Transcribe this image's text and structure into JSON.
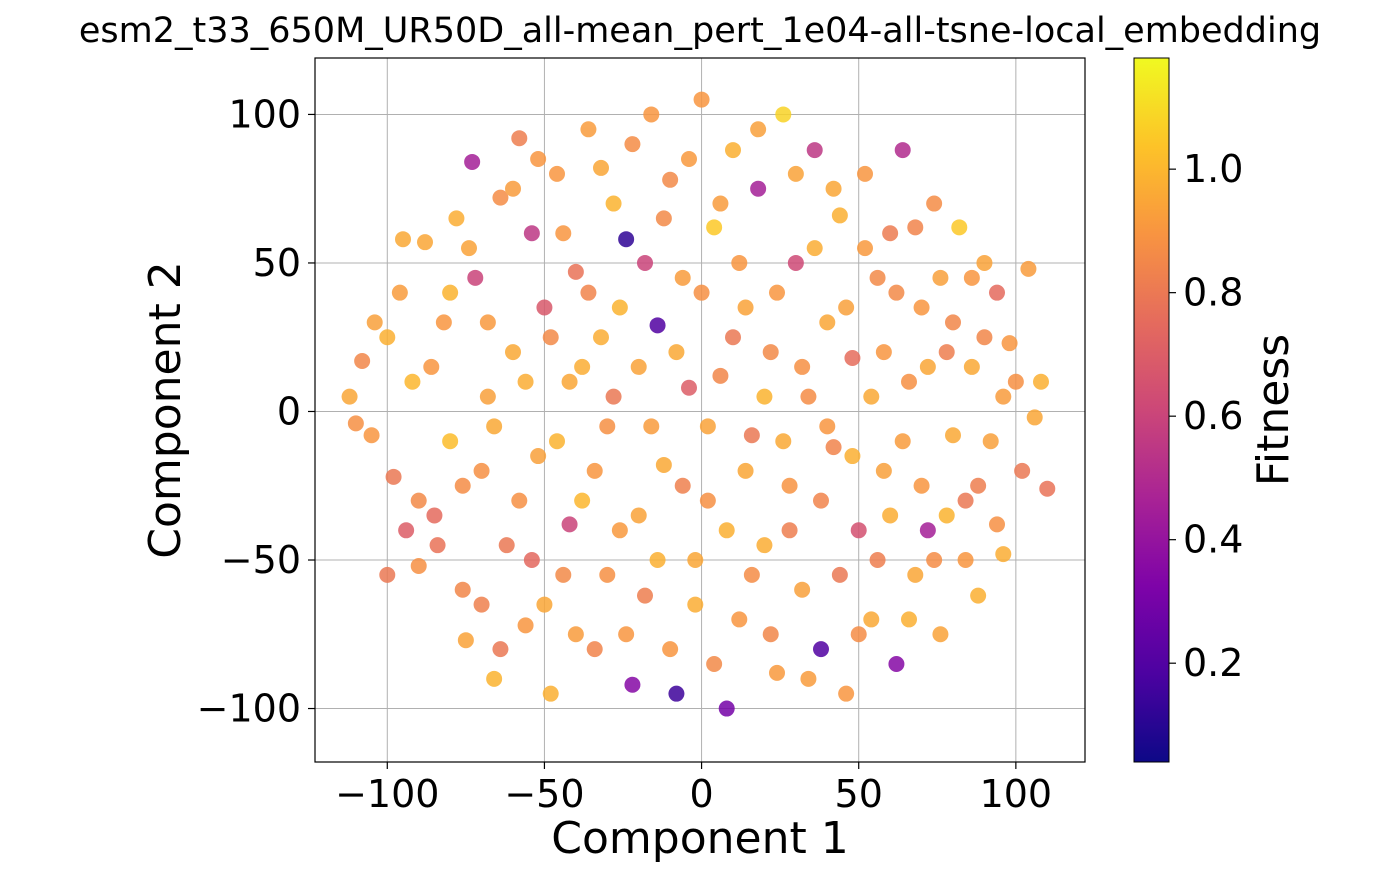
{
  "chart_data": {
    "type": "scatter",
    "title": "esm2_t33_650M_UR50D_all-mean_pert_1e04-all-tsne-local_embedding",
    "xlabel": "Component 1",
    "ylabel": "Component 2",
    "xlim": [
      -123,
      122
    ],
    "ylim": [
      -118,
      119
    ],
    "xticks": [
      -100,
      -50,
      0,
      50,
      100
    ],
    "yticks": [
      -100,
      -50,
      0,
      50,
      100
    ],
    "xtick_labels": [
      "−100",
      "−50",
      "0",
      "50",
      "100"
    ],
    "ytick_labels": [
      "−100",
      "−50",
      "0",
      "50",
      "100"
    ],
    "grid": true,
    "colormap": "plasma",
    "colorbar": {
      "label": "Fitness",
      "range": [
        0.04,
        1.18
      ],
      "ticks": [
        0.2,
        0.4,
        0.6,
        0.8,
        1.0
      ],
      "tick_labels": [
        "0.2",
        "0.4",
        "0.6",
        "0.8",
        "1.0"
      ],
      "placement": "right"
    },
    "points": [
      [
        -112,
        5,
        0.95
      ],
      [
        -108,
        17,
        0.85
      ],
      [
        -105,
        -8,
        0.9
      ],
      [
        -100,
        25,
        0.98
      ],
      [
        -98,
        -22,
        0.8
      ],
      [
        -96,
        40,
        0.92
      ],
      [
        -94,
        -40,
        0.7
      ],
      [
        -92,
        10,
        1.0
      ],
      [
        -90,
        -52,
        0.88
      ],
      [
        -88,
        57,
        0.95
      ],
      [
        -85,
        -35,
        0.75
      ],
      [
        -82,
        30,
        0.9
      ],
      [
        -80,
        -10,
        1.02
      ],
      [
        -78,
        65,
        0.97
      ],
      [
        -76,
        -60,
        0.85
      ],
      [
        -75,
        -77,
        0.94
      ],
      [
        -73,
        84,
        0.45
      ],
      [
        -72,
        45,
        0.6
      ],
      [
        -70,
        -20,
        0.88
      ],
      [
        -68,
        5,
        0.93
      ],
      [
        -66,
        -90,
        0.99
      ],
      [
        -64,
        72,
        0.87
      ],
      [
        -62,
        -45,
        0.8
      ],
      [
        -60,
        20,
        0.96
      ],
      [
        -58,
        92,
        0.82
      ],
      [
        -56,
        -72,
        0.9
      ],
      [
        -54,
        60,
        0.55
      ],
      [
        -52,
        -15,
        0.93
      ],
      [
        -50,
        35,
        0.68
      ],
      [
        -48,
        -95,
        0.98
      ],
      [
        -46,
        80,
        0.9
      ],
      [
        -44,
        -55,
        0.86
      ],
      [
        -42,
        10,
        0.95
      ],
      [
        -40,
        47,
        0.78
      ],
      [
        -38,
        -30,
        1.0
      ],
      [
        -36,
        95,
        0.92
      ],
      [
        -34,
        -80,
        0.84
      ],
      [
        -32,
        25,
        0.97
      ],
      [
        -30,
        -5,
        0.88
      ],
      [
        -28,
        70,
        0.99
      ],
      [
        -26,
        -40,
        0.91
      ],
      [
        -24,
        58,
        0.12
      ],
      [
        -22,
        -92,
        0.35
      ],
      [
        -20,
        15,
        0.94
      ],
      [
        -18,
        -62,
        0.82
      ],
      [
        -16,
        100,
        0.9
      ],
      [
        -14,
        29,
        0.2
      ],
      [
        -12,
        -18,
        0.96
      ],
      [
        -10,
        78,
        0.86
      ],
      [
        -8,
        -95,
        0.15
      ],
      [
        -6,
        45,
        0.92
      ],
      [
        -4,
        8,
        0.7
      ],
      [
        -2,
        -50,
        0.95
      ],
      [
        0,
        105,
        0.9
      ],
      [
        2,
        -30,
        0.88
      ],
      [
        4,
        62,
        1.05
      ],
      [
        6,
        12,
        0.85
      ],
      [
        8,
        -100,
        0.3
      ],
      [
        10,
        88,
        0.98
      ],
      [
        12,
        -70,
        0.9
      ],
      [
        14,
        35,
        0.94
      ],
      [
        16,
        -8,
        0.8
      ],
      [
        18,
        75,
        0.45
      ],
      [
        20,
        -45,
        0.97
      ],
      [
        22,
        20,
        0.86
      ],
      [
        24,
        -88,
        0.91
      ],
      [
        26,
        100,
        1.08
      ],
      [
        28,
        -25,
        0.89
      ],
      [
        30,
        50,
        0.62
      ],
      [
        32,
        -60,
        0.93
      ],
      [
        34,
        5,
        0.87
      ],
      [
        36,
        88,
        0.55
      ],
      [
        38,
        -80,
        0.2
      ],
      [
        40,
        30,
        0.95
      ],
      [
        42,
        -12,
        0.84
      ],
      [
        44,
        66,
        0.98
      ],
      [
        46,
        -95,
        0.9
      ],
      [
        48,
        18,
        0.76
      ],
      [
        50,
        -40,
        0.65
      ],
      [
        52,
        80,
        0.9
      ],
      [
        54,
        -70,
        0.96
      ],
      [
        56,
        45,
        0.86
      ],
      [
        58,
        -20,
        0.93
      ],
      [
        60,
        60,
        0.81
      ],
      [
        62,
        -85,
        0.35
      ],
      [
        64,
        88,
        0.5
      ],
      [
        66,
        10,
        0.88
      ],
      [
        68,
        -55,
        0.95
      ],
      [
        70,
        35,
        0.9
      ],
      [
        72,
        -40,
        0.45
      ],
      [
        74,
        70,
        0.87
      ],
      [
        76,
        -75,
        0.94
      ],
      [
        78,
        20,
        0.82
      ],
      [
        80,
        -8,
        0.96
      ],
      [
        82,
        62,
        1.05
      ],
      [
        84,
        -30,
        0.8
      ],
      [
        86,
        45,
        0.9
      ],
      [
        88,
        -62,
        0.98
      ],
      [
        90,
        25,
        0.85
      ],
      [
        92,
        -10,
        0.93
      ],
      [
        94,
        40,
        0.75
      ],
      [
        96,
        -48,
        0.97
      ],
      [
        98,
        23,
        0.9
      ],
      [
        100,
        10,
        0.88
      ],
      [
        102,
        -20,
        0.8
      ],
      [
        104,
        48,
        0.92
      ],
      [
        106,
        -2,
        0.95
      ],
      [
        108,
        10,
        0.98
      ],
      [
        110,
        -26,
        0.78
      ],
      [
        -110,
        -4,
        0.88
      ],
      [
        -104,
        30,
        0.93
      ],
      [
        -100,
        -55,
        0.8
      ],
      [
        -95,
        58,
        0.96
      ],
      [
        -90,
        -30,
        0.86
      ],
      [
        -86,
        15,
        0.9
      ],
      [
        -84,
        -45,
        0.78
      ],
      [
        -80,
        40,
        0.99
      ],
      [
        -76,
        -25,
        0.87
      ],
      [
        -74,
        55,
        0.94
      ],
      [
        -70,
        -65,
        0.83
      ],
      [
        -68,
        30,
        0.91
      ],
      [
        -66,
        -5,
        0.96
      ],
      [
        -64,
        -80,
        0.8
      ],
      [
        -60,
        75,
        0.92
      ],
      [
        -58,
        -30,
        0.88
      ],
      [
        -56,
        10,
        0.97
      ],
      [
        -54,
        -50,
        0.74
      ],
      [
        -52,
        85,
        0.9
      ],
      [
        -50,
        -65,
        0.95
      ],
      [
        -48,
        25,
        0.86
      ],
      [
        -46,
        -10,
        0.99
      ],
      [
        -44,
        60,
        0.9
      ],
      [
        -42,
        -38,
        0.6
      ],
      [
        -40,
        -75,
        0.92
      ],
      [
        -38,
        15,
        0.97
      ],
      [
        -36,
        40,
        0.84
      ],
      [
        -34,
        -20,
        0.9
      ],
      [
        -32,
        82,
        0.95
      ],
      [
        -30,
        -55,
        0.88
      ],
      [
        -28,
        5,
        0.8
      ],
      [
        -26,
        35,
        0.99
      ],
      [
        -24,
        -75,
        0.9
      ],
      [
        -22,
        90,
        0.87
      ],
      [
        -20,
        -35,
        0.94
      ],
      [
        -18,
        50,
        0.6
      ],
      [
        -16,
        -5,
        0.92
      ],
      [
        -14,
        -50,
        0.98
      ],
      [
        -12,
        65,
        0.86
      ],
      [
        -10,
        -80,
        0.9
      ],
      [
        -8,
        20,
        0.96
      ],
      [
        -6,
        -25,
        0.83
      ],
      [
        -4,
        85,
        0.91
      ],
      [
        -2,
        -65,
        0.97
      ],
      [
        0,
        40,
        0.88
      ],
      [
        2,
        -5,
        0.94
      ],
      [
        4,
        -85,
        0.86
      ],
      [
        6,
        70,
        0.92
      ],
      [
        8,
        -40,
        0.98
      ],
      [
        10,
        25,
        0.8
      ],
      [
        12,
        50,
        0.9
      ],
      [
        14,
        -20,
        0.95
      ],
      [
        16,
        -55,
        0.87
      ],
      [
        18,
        95,
        0.93
      ],
      [
        20,
        5,
        0.99
      ],
      [
        22,
        -75,
        0.85
      ],
      [
        24,
        40,
        0.9
      ],
      [
        26,
        -10,
        0.96
      ],
      [
        28,
        -40,
        0.82
      ],
      [
        30,
        80,
        0.94
      ],
      [
        32,
        15,
        0.88
      ],
      [
        34,
        -90,
        0.92
      ],
      [
        36,
        55,
        0.97
      ],
      [
        38,
        -30,
        0.84
      ],
      [
        40,
        -5,
        0.9
      ],
      [
        42,
        75,
        0.95
      ],
      [
        44,
        -55,
        0.8
      ],
      [
        46,
        35,
        0.93
      ],
      [
        48,
        -15,
        0.98
      ],
      [
        50,
        -75,
        0.87
      ],
      [
        52,
        55,
        0.91
      ],
      [
        54,
        5,
        0.96
      ],
      [
        56,
        -50,
        0.82
      ],
      [
        58,
        20,
        0.9
      ],
      [
        60,
        -35,
        0.97
      ],
      [
        62,
        40,
        0.86
      ],
      [
        64,
        -10,
        0.92
      ],
      [
        66,
        -70,
        0.98
      ],
      [
        68,
        62,
        0.84
      ],
      [
        70,
        -25,
        0.9
      ],
      [
        72,
        15,
        0.95
      ],
      [
        74,
        -50,
        0.87
      ],
      [
        76,
        45,
        0.93
      ],
      [
        78,
        -35,
        0.99
      ],
      [
        80,
        30,
        0.85
      ],
      [
        84,
        -50,
        0.9
      ],
      [
        86,
        15,
        0.96
      ],
      [
        88,
        -25,
        0.82
      ],
      [
        90,
        50,
        0.94
      ],
      [
        94,
        -38,
        0.88
      ],
      [
        96,
        5,
        0.92
      ]
    ]
  }
}
